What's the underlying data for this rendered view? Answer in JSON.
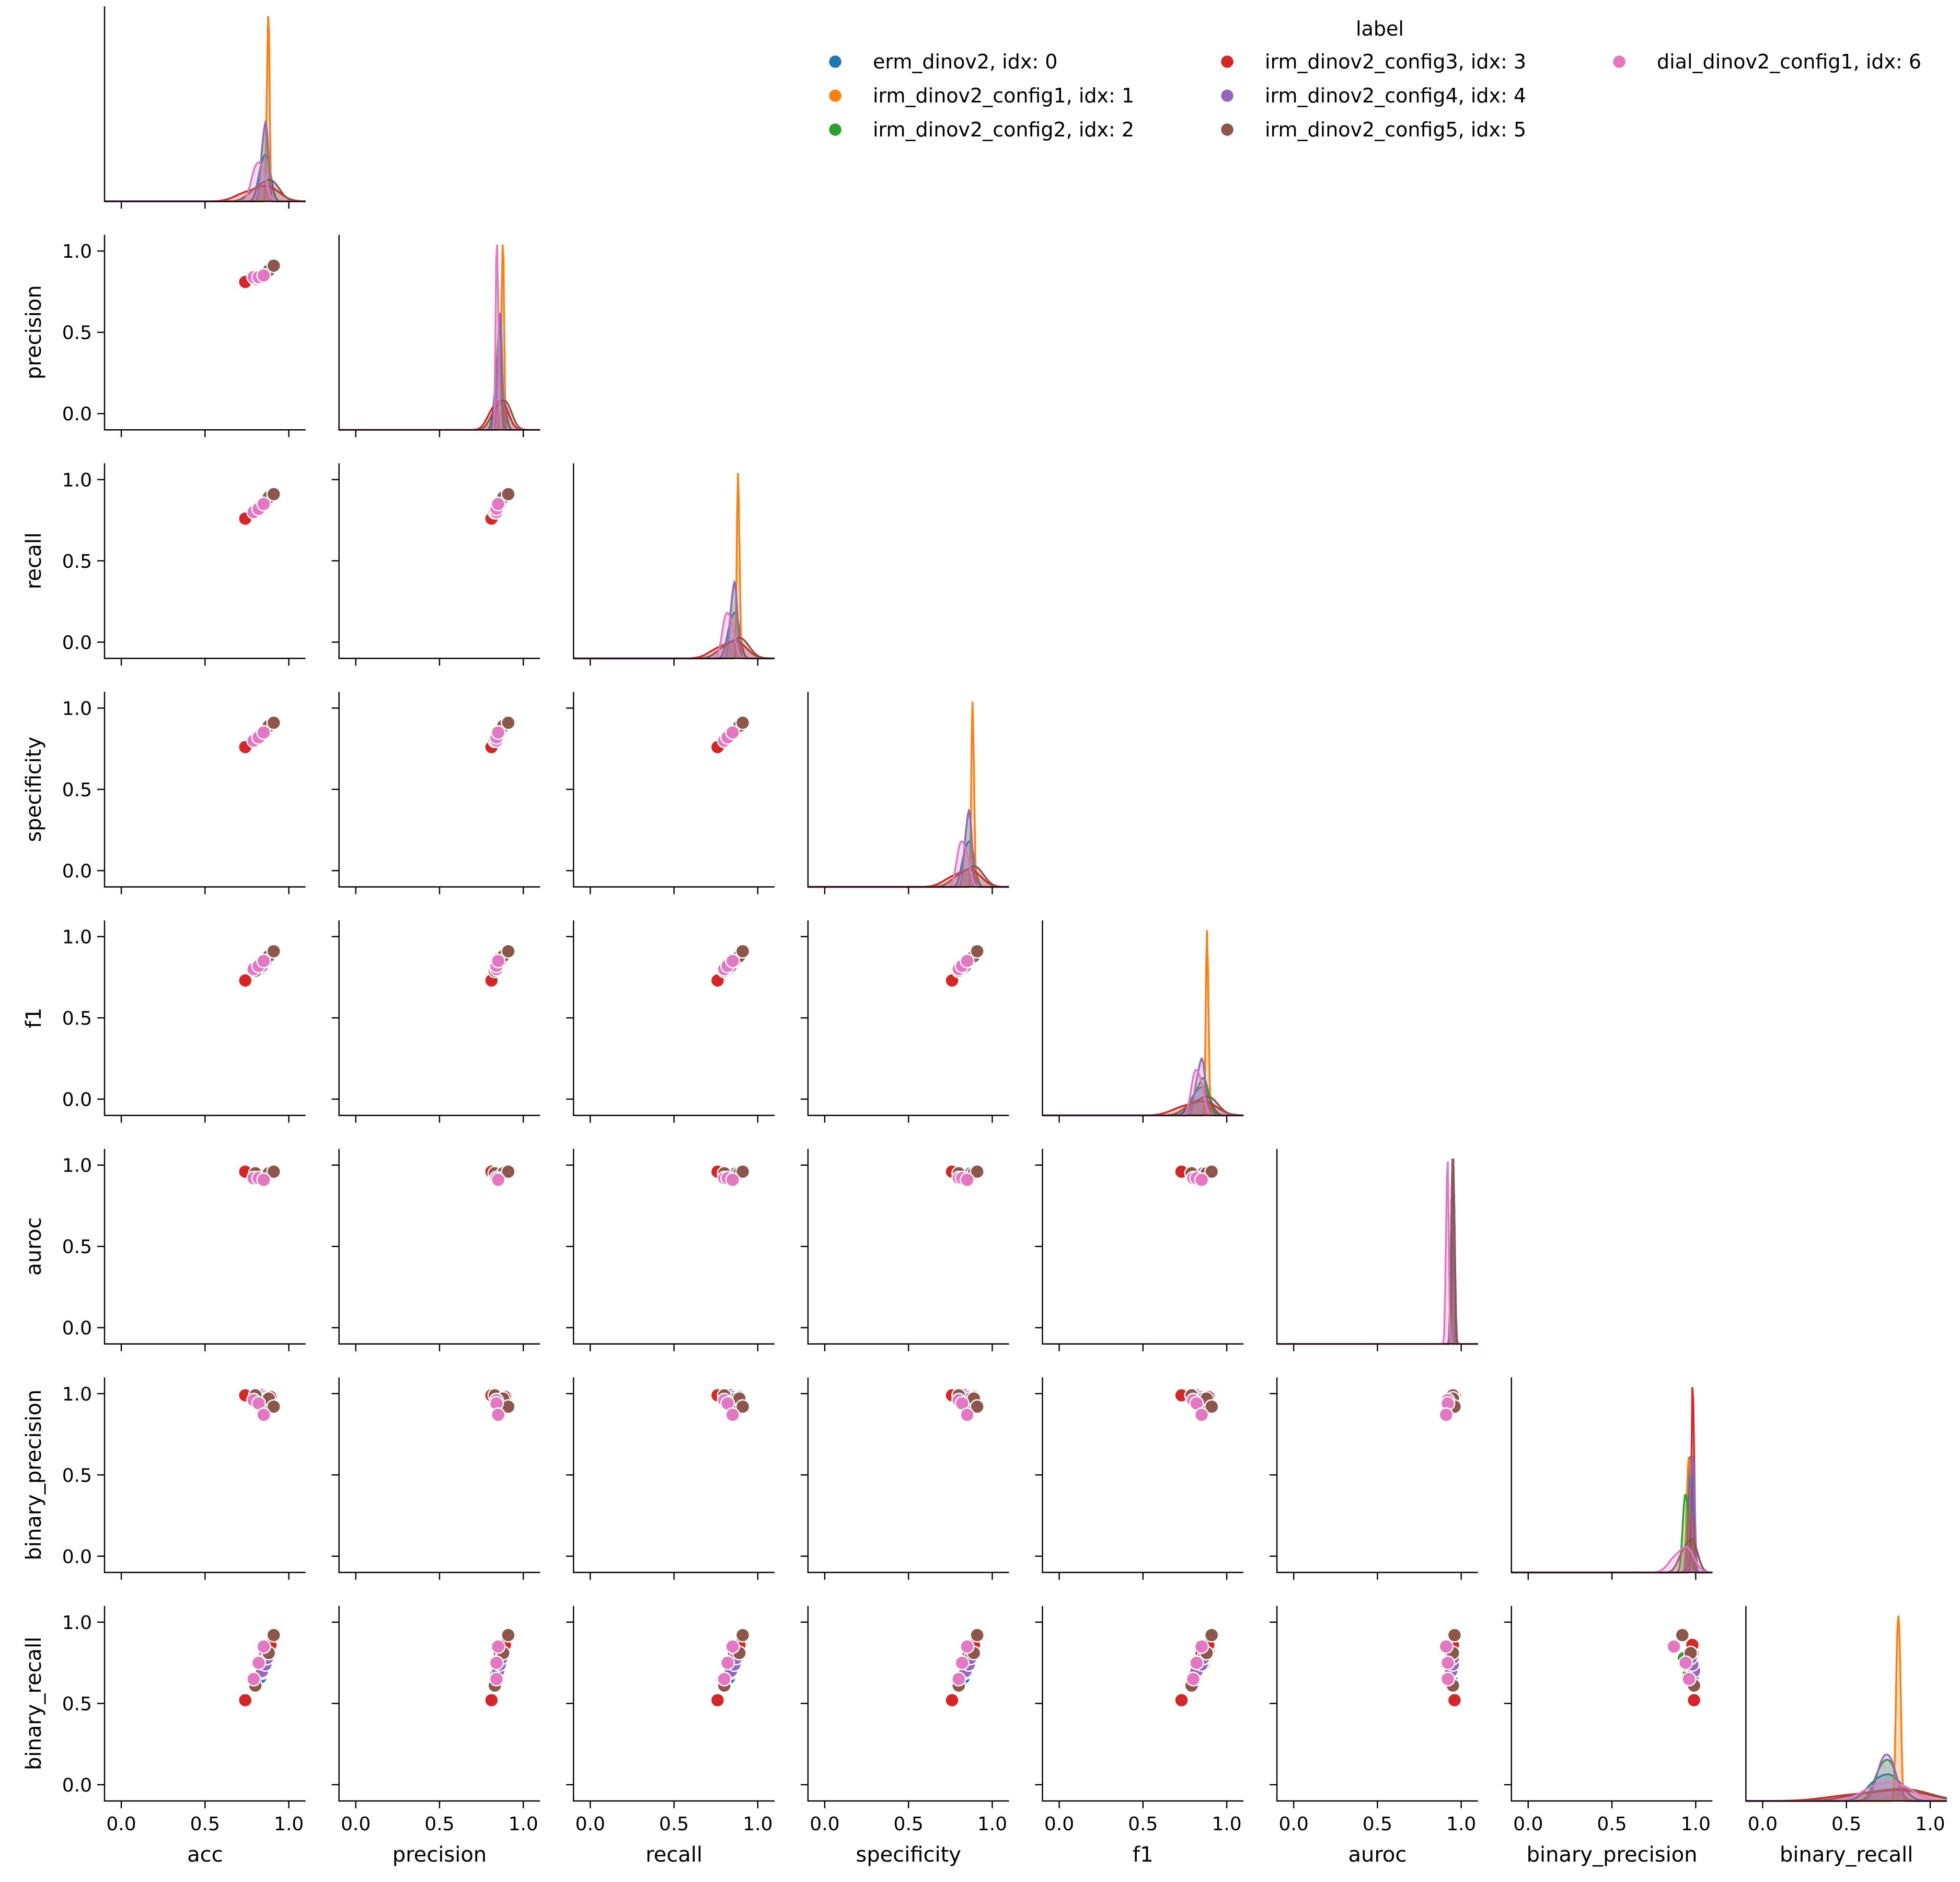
{
  "chart_data": {
    "type": "scatter",
    "subtype": "pairplot-corner",
    "variables": [
      "acc",
      "precision",
      "recall",
      "specificity",
      "f1",
      "auroc",
      "binary_precision",
      "binary_recall"
    ],
    "axis_range": [
      -0.1,
      1.1
    ],
    "ticks": [
      0.0,
      0.5,
      1.0
    ],
    "tick_labels": [
      "0.0",
      "0.5",
      "1.0"
    ],
    "diagonal": "kde",
    "grid": false,
    "legend": {
      "title": "label",
      "placement": "top-right",
      "columns": 3
    },
    "series": [
      {
        "name": "erm_dinov2, idx: 0",
        "color": "#1f77b4",
        "values": [
          [
            0.83,
            0.84,
            0.83,
            0.83,
            0.8,
            0.94,
            0.98,
            0.66
          ],
          [
            0.86,
            0.85,
            0.86,
            0.86,
            0.85,
            0.95,
            0.97,
            0.74
          ],
          [
            0.88,
            0.88,
            0.88,
            0.88,
            0.88,
            0.95,
            0.96,
            0.8
          ]
        ]
      },
      {
        "name": "irm_dinov2_config1, idx: 1",
        "color": "#ff7f0e",
        "values": [
          [
            0.87,
            0.87,
            0.88,
            0.88,
            0.88,
            0.94,
            0.95,
            0.8
          ],
          [
            0.88,
            0.88,
            0.88,
            0.88,
            0.88,
            0.95,
            0.96,
            0.81
          ],
          [
            0.88,
            0.88,
            0.89,
            0.89,
            0.89,
            0.95,
            0.97,
            0.82
          ]
        ]
      },
      {
        "name": "irm_dinov2_config2, idx: 2",
        "color": "#2ca02c",
        "values": [
          [
            0.84,
            0.84,
            0.84,
            0.84,
            0.81,
            0.94,
            0.96,
            0.69
          ],
          [
            0.86,
            0.86,
            0.86,
            0.86,
            0.86,
            0.95,
            0.94,
            0.74
          ],
          [
            0.87,
            0.86,
            0.87,
            0.87,
            0.87,
            0.95,
            0.93,
            0.78
          ]
        ]
      },
      {
        "name": "irm_dinov2_config3, idx: 3",
        "color": "#d62728",
        "values": [
          [
            0.74,
            0.81,
            0.76,
            0.76,
            0.73,
            0.96,
            0.99,
            0.52
          ],
          [
            0.86,
            0.86,
            0.86,
            0.86,
            0.85,
            0.95,
            0.98,
            0.81
          ],
          [
            0.89,
            0.89,
            0.89,
            0.89,
            0.89,
            0.95,
            0.98,
            0.86
          ]
        ]
      },
      {
        "name": "irm_dinov2_config4, idx: 4",
        "color": "#9467bd",
        "values": [
          [
            0.84,
            0.85,
            0.84,
            0.84,
            0.82,
            0.94,
            0.99,
            0.7
          ],
          [
            0.86,
            0.86,
            0.86,
            0.86,
            0.85,
            0.95,
            0.98,
            0.74
          ],
          [
            0.87,
            0.87,
            0.87,
            0.87,
            0.86,
            0.95,
            0.97,
            0.78
          ]
        ]
      },
      {
        "name": "irm_dinov2_config5, idx: 5",
        "color": "#8c564b",
        "values": [
          [
            0.8,
            0.83,
            0.8,
            0.8,
            0.79,
            0.95,
            0.99,
            0.61
          ],
          [
            0.88,
            0.88,
            0.89,
            0.89,
            0.88,
            0.95,
            0.97,
            0.81
          ],
          [
            0.91,
            0.91,
            0.91,
            0.91,
            0.91,
            0.96,
            0.92,
            0.92
          ]
        ]
      },
      {
        "name": "dial_dinov2_config1, idx: 6",
        "color": "#e377c2",
        "values": [
          [
            0.79,
            0.84,
            0.8,
            0.8,
            0.8,
            0.92,
            0.96,
            0.65
          ],
          [
            0.82,
            0.84,
            0.82,
            0.82,
            0.82,
            0.92,
            0.94,
            0.75
          ],
          [
            0.85,
            0.85,
            0.85,
            0.85,
            0.85,
            0.91,
            0.87,
            0.85
          ]
        ]
      }
    ]
  }
}
